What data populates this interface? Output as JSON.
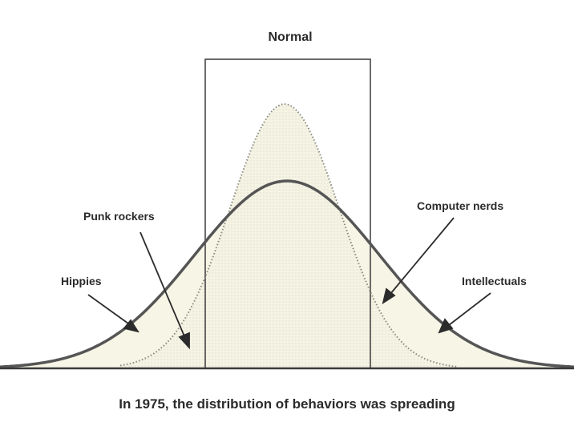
{
  "figure": {
    "title": "Normal",
    "caption": "In 1975, the distribution of behaviors was spreading",
    "annotations": [
      {
        "id": "punk",
        "text": "Punk rockers"
      },
      {
        "id": "hippies",
        "text": "Hippies"
      },
      {
        "id": "computer",
        "text": "Computer nerds"
      },
      {
        "id": "intellectuals",
        "text": "Intellectuals"
      }
    ],
    "colors": {
      "ink": "#2b2b2b",
      "wide_curve": "#555555",
      "narrow_curve_dotted": "#8a8a80",
      "fill": "#f3f2df",
      "background": "#ffffff"
    }
  }
}
